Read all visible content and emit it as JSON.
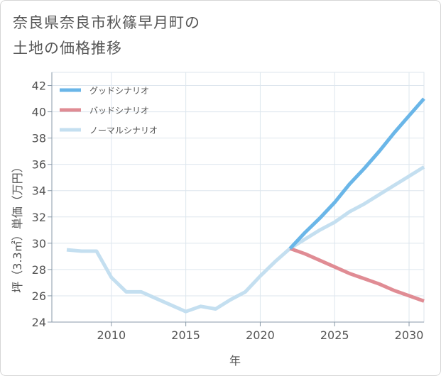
{
  "title_line1": "奈良県奈良市秋篠早月町の",
  "title_line2": "土地の価格推移",
  "chart_data": {
    "type": "line",
    "title": "奈良県奈良市秋篠早月町の土地の価格推移",
    "xlabel": "年",
    "ylabel": "坪（3.3㎡）単価（万円）",
    "xlim": [
      2006,
      2031
    ],
    "ylim": [
      24,
      43
    ],
    "x_ticks": [
      2010,
      2015,
      2020,
      2025,
      2030
    ],
    "y_ticks": [
      24,
      26,
      28,
      30,
      32,
      34,
      36,
      38,
      40,
      42
    ],
    "grid": true,
    "legend_position": "top-left",
    "series": [
      {
        "name": "ノーマルシナリオ",
        "color": "#c4dff0",
        "x": [
          2007,
          2008,
          2009,
          2010,
          2011,
          2012,
          2013,
          2014,
          2015,
          2016,
          2017,
          2018,
          2019,
          2020,
          2021,
          2022,
          2023,
          2024,
          2025,
          2026,
          2027,
          2028,
          2029,
          2030,
          2031
        ],
        "values": [
          29.5,
          29.4,
          29.4,
          27.4,
          26.3,
          26.3,
          25.8,
          25.3,
          24.8,
          25.2,
          25.0,
          25.7,
          26.3,
          27.5,
          28.6,
          29.6,
          30.3,
          31.0,
          31.6,
          32.4,
          33.0,
          33.7,
          34.4,
          35.1,
          35.8
        ]
      },
      {
        "name": "グッドシナリオ",
        "color": "#6ab6e8",
        "x": [
          2022,
          2023,
          2024,
          2025,
          2026,
          2027,
          2028,
          2029,
          2030,
          2031
        ],
        "values": [
          29.6,
          30.8,
          31.9,
          33.1,
          34.5,
          35.7,
          37.0,
          38.4,
          39.7,
          41.0
        ]
      },
      {
        "name": "バッドシナリオ",
        "color": "#e08c94",
        "x": [
          2022,
          2023,
          2024,
          2025,
          2026,
          2027,
          2028,
          2029,
          2030,
          2031
        ],
        "values": [
          29.6,
          29.2,
          28.7,
          28.2,
          27.7,
          27.3,
          26.9,
          26.4,
          26.0,
          25.6
        ]
      }
    ],
    "legend_order": [
      "グッドシナリオ",
      "バッドシナリオ",
      "ノーマルシナリオ"
    ]
  }
}
